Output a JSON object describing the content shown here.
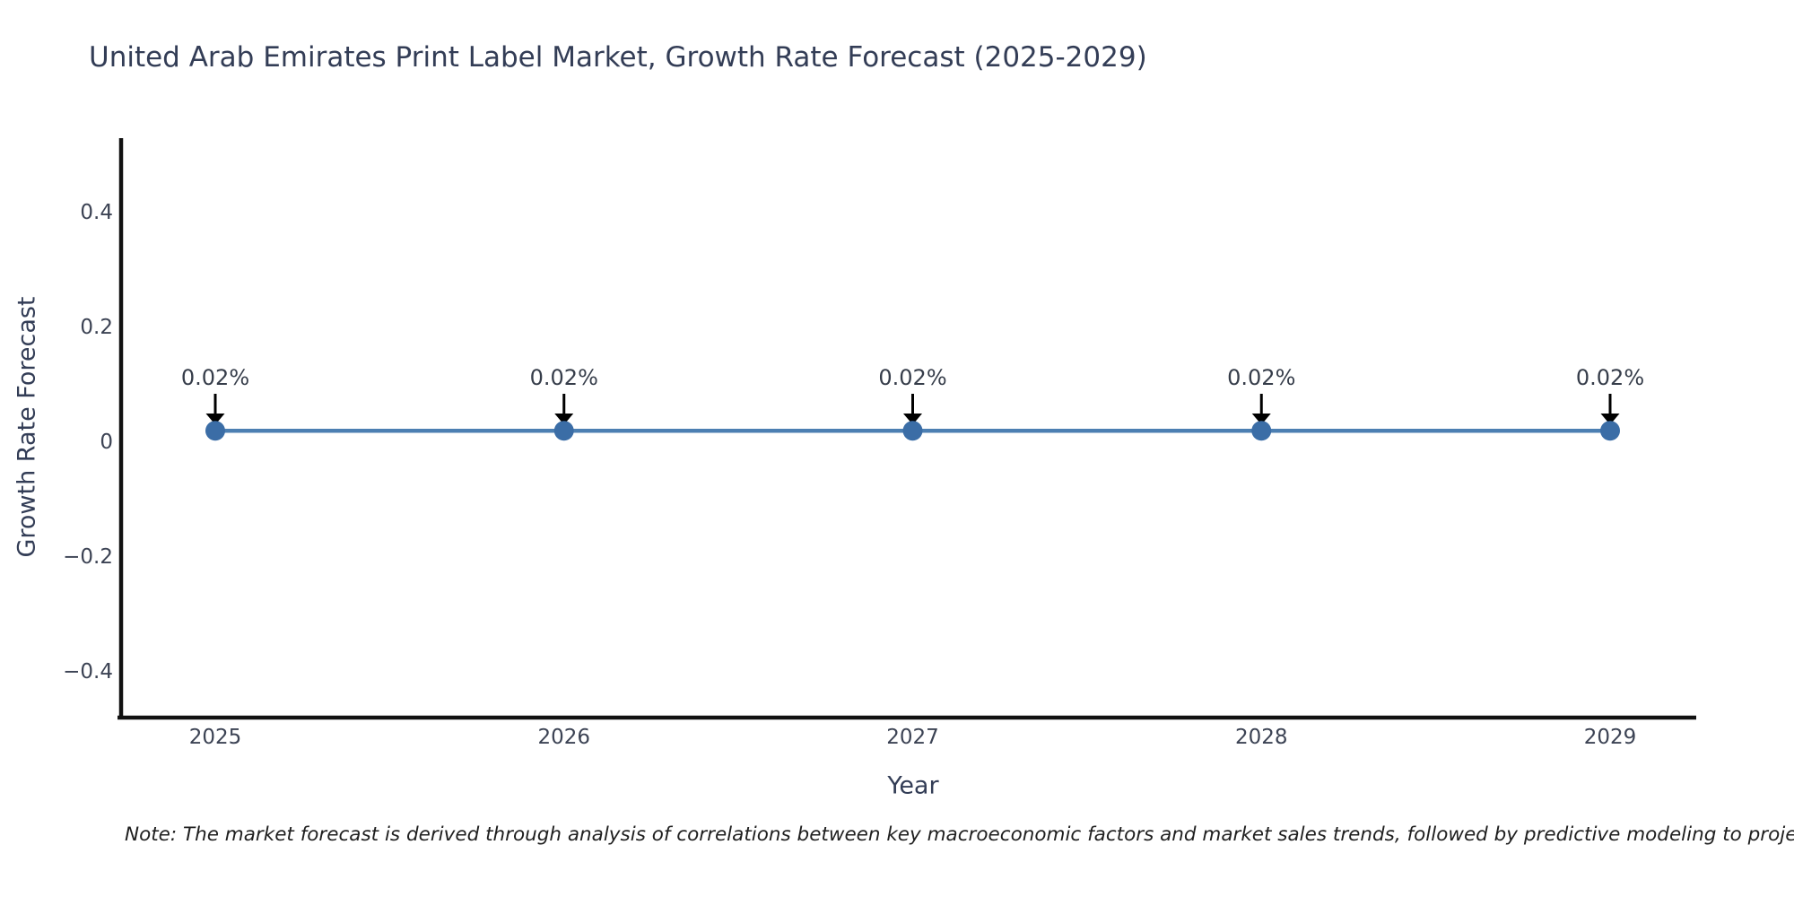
{
  "page": {
    "background": "#ffffff"
  },
  "header": {
    "title": "United Arab Emirates Print Label Market, Growth Rate Forecast (2025-2029)"
  },
  "footnote": "Note: The market forecast is derived through analysis of correlations between key macroeconomic factors and market sales trends, followed by predictive modeling to project future sales",
  "chart_data": {
    "type": "line",
    "title": "United Arab Emirates Print Label Market, Growth Rate Forecast (2025-2029)",
    "xlabel": "Year",
    "ylabel": "Growth Rate Forecast",
    "categories": [
      "2025",
      "2026",
      "2027",
      "2028",
      "2029"
    ],
    "series": [
      {
        "name": "Growth Rate Forecast",
        "values": [
          0.02,
          0.02,
          0.02,
          0.02,
          0.02
        ]
      }
    ],
    "point_labels": [
      "0.02%",
      "0.02%",
      "0.02%",
      "0.02%",
      "0.02%"
    ],
    "yticks": {
      "values": [
        0.4,
        0.2,
        0,
        -0.2,
        -0.4
      ],
      "labels": [
        "0.4",
        "0.2",
        "0",
        "−0.2",
        "−0.4"
      ]
    },
    "ylim": [
      -0.48,
      0.53
    ],
    "grid": false,
    "legend": false,
    "annotation_style": "down-arrow",
    "colors": {
      "line": "#4c7fb2",
      "marker": "#3b6da6",
      "arrow": "#000000",
      "axis": "#111111",
      "title_text": "#333d56",
      "tick_text": "#3c4354"
    }
  }
}
